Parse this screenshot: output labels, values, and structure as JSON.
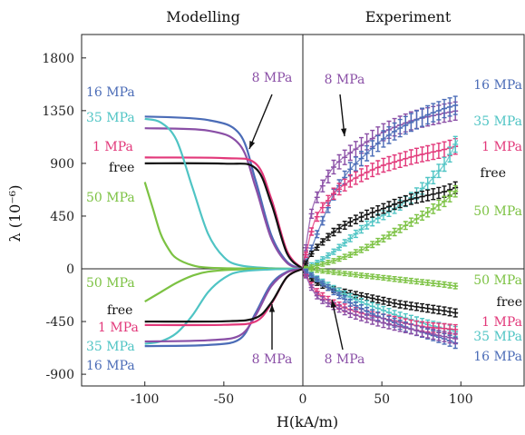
{
  "chart_data": {
    "type": "line",
    "panel_titles": {
      "left": "Modelling",
      "right": "Experiment"
    },
    "xlabel": "H(kA/m)",
    "ylabel": "λ (10⁻⁶)",
    "xlim": [
      -140,
      140
    ],
    "ylim": [
      -1000,
      2000
    ],
    "xticks": [
      -100,
      -50,
      0,
      50,
      100
    ],
    "yticks": [
      -900,
      -450,
      0,
      450,
      900,
      1350,
      1800
    ],
    "grid": false,
    "colors": {
      "16 MPa": "#4b6cb7",
      "35 MPa": "#4fc4c4",
      "1 MPa": "#e2387a",
      "free": "#111111",
      "50 MPa": "#7cc243",
      "8 MPa": "#8a4fa6"
    },
    "model_parallel": [
      {
        "name": "16 MPa",
        "x": [
          -100,
          -60,
          -40,
          -30,
          -20,
          -10,
          0
        ],
        "y": [
          1300,
          1270,
          1150,
          760,
          290,
          60,
          0
        ]
      },
      {
        "name": "8 MPa",
        "x": [
          -100,
          -60,
          -40,
          -30,
          -20,
          -10,
          0
        ],
        "y": [
          1200,
          1180,
          1060,
          700,
          260,
          50,
          0
        ]
      },
      {
        "name": "1 MPa",
        "x": [
          -100,
          -50,
          -30,
          -20,
          -10,
          0
        ],
        "y": [
          950,
          945,
          900,
          600,
          150,
          0
        ]
      },
      {
        "name": "free",
        "x": [
          -100,
          -50,
          -30,
          -20,
          -10,
          0
        ],
        "y": [
          900,
          898,
          860,
          560,
          130,
          0
        ]
      },
      {
        "name": "35 MPa",
        "x": [
          -100,
          -90,
          -80,
          -70,
          -60,
          -50,
          -40,
          -20,
          0
        ],
        "y": [
          1280,
          1250,
          1100,
          700,
          300,
          100,
          30,
          5,
          0
        ]
      },
      {
        "name": "50 MPa",
        "x": [
          -100,
          -95,
          -90,
          -85,
          -80,
          -70,
          -60,
          -40,
          0
        ],
        "y": [
          740,
          520,
          300,
          170,
          90,
          30,
          10,
          3,
          0
        ]
      }
    ],
    "model_perpendicular": [
      {
        "name": "50 MPa",
        "x": [
          -100,
          -90,
          -80,
          -70,
          -60,
          -40,
          0
        ],
        "y": [
          -280,
          -200,
          -120,
          -60,
          -25,
          -5,
          0
        ]
      },
      {
        "name": "35 MPa",
        "x": [
          -100,
          -90,
          -80,
          -70,
          -60,
          -50,
          -40,
          -20,
          0
        ],
        "y": [
          -640,
          -620,
          -550,
          -400,
          -200,
          -80,
          -25,
          -5,
          0
        ]
      },
      {
        "name": "16 MPa",
        "x": [
          -100,
          -60,
          -40,
          -30,
          -20,
          -10,
          0
        ],
        "y": [
          -660,
          -650,
          -600,
          -380,
          -130,
          -25,
          0
        ]
      },
      {
        "name": "8 MPa",
        "x": [
          -100,
          -60,
          -40,
          -30,
          -20,
          -10,
          0
        ],
        "y": [
          -620,
          -610,
          -570,
          -400,
          -150,
          -30,
          0
        ]
      },
      {
        "name": "1 MPa",
        "x": [
          -100,
          -50,
          -30,
          -20,
          -10,
          0
        ],
        "y": [
          -480,
          -478,
          -450,
          -300,
          -70,
          0
        ]
      },
      {
        "name": "free",
        "x": [
          -100,
          -50,
          -30,
          -20,
          -10,
          0
        ],
        "y": [
          -450,
          -448,
          -420,
          -290,
          -70,
          0
        ]
      }
    ],
    "experiment_parallel": [
      {
        "name": "8 MPa",
        "x": [
          0,
          5,
          10,
          20,
          30,
          40,
          50,
          60,
          70,
          80,
          90,
          98
        ],
        "y": [
          0,
          450,
          650,
          880,
          990,
          1080,
          1160,
          1220,
          1270,
          1300,
          1330,
          1350
        ]
      },
      {
        "name": "16 MPa",
        "x": [
          0,
          5,
          10,
          20,
          30,
          40,
          50,
          60,
          70,
          80,
          90,
          98
        ],
        "y": [
          0,
          160,
          330,
          650,
          850,
          980,
          1100,
          1190,
          1260,
          1320,
          1370,
          1400
        ]
      },
      {
        "name": "1 MPa",
        "x": [
          0,
          5,
          10,
          20,
          30,
          40,
          50,
          60,
          70,
          80,
          90,
          98
        ],
        "y": [
          0,
          300,
          480,
          650,
          750,
          820,
          880,
          920,
          960,
          990,
          1020,
          1050
        ]
      },
      {
        "name": "35 MPa",
        "x": [
          0,
          10,
          20,
          30,
          40,
          50,
          60,
          70,
          80,
          90,
          98
        ],
        "y": [
          0,
          60,
          150,
          260,
          370,
          450,
          530,
          620,
          740,
          900,
          1100
        ]
      },
      {
        "name": "free",
        "x": [
          0,
          5,
          10,
          20,
          30,
          40,
          50,
          60,
          70,
          80,
          90,
          98
        ],
        "y": [
          0,
          120,
          200,
          320,
          400,
          460,
          510,
          560,
          600,
          630,
          660,
          700
        ]
      },
      {
        "name": "50 MPa",
        "x": [
          0,
          10,
          20,
          30,
          40,
          50,
          60,
          70,
          80,
          90,
          98
        ],
        "y": [
          0,
          30,
          70,
          120,
          180,
          250,
          330,
          410,
          490,
          580,
          680
        ]
      }
    ],
    "experiment_perpendicular": [
      {
        "name": "50 MPa",
        "x": [
          0,
          10,
          20,
          30,
          40,
          50,
          60,
          70,
          80,
          90,
          98
        ],
        "y": [
          0,
          -15,
          -30,
          -45,
          -60,
          -75,
          -90,
          -105,
          -120,
          -135,
          -150
        ]
      },
      {
        "name": "free",
        "x": [
          0,
          5,
          10,
          20,
          30,
          40,
          50,
          60,
          70,
          80,
          90,
          98
        ],
        "y": [
          0,
          -80,
          -130,
          -180,
          -210,
          -240,
          -270,
          -300,
          -320,
          -340,
          -360,
          -380
        ]
      },
      {
        "name": "35 MPa",
        "x": [
          0,
          10,
          20,
          30,
          40,
          50,
          60,
          70,
          80,
          90,
          98
        ],
        "y": [
          0,
          -90,
          -170,
          -240,
          -300,
          -350,
          -400,
          -440,
          -480,
          -510,
          -540
        ]
      },
      {
        "name": "1 MPa",
        "x": [
          0,
          5,
          10,
          20,
          30,
          40,
          50,
          60,
          70,
          80,
          90,
          98
        ],
        "y": [
          0,
          -130,
          -210,
          -300,
          -350,
          -390,
          -420,
          -450,
          -480,
          -500,
          -510,
          -520
        ]
      },
      {
        "name": "16 MPa",
        "x": [
          0,
          10,
          20,
          30,
          40,
          50,
          60,
          70,
          80,
          90,
          98
        ],
        "y": [
          0,
          -100,
          -200,
          -290,
          -360,
          -420,
          -470,
          -520,
          -560,
          -600,
          -640
        ]
      },
      {
        "name": "8 MPa",
        "x": [
          0,
          5,
          10,
          20,
          30,
          40,
          50,
          60,
          70,
          80,
          90,
          98
        ],
        "y": [
          0,
          -150,
          -250,
          -320,
          -380,
          -420,
          -460,
          -490,
          -520,
          -550,
          -580,
          -600
        ]
      }
    ],
    "labels_left": [
      "16 MPa",
      "35 MPa",
      "1 MPa",
      "free",
      "50 MPa",
      "50 MPa",
      "free",
      "1 MPa",
      "35 MPa",
      "16 MPa"
    ],
    "labels_right": [
      "16 MPa",
      "35 MPa",
      "1 MPa",
      "free",
      "50 MPa",
      "50 MPa",
      "free",
      "1 MPa",
      "35 MPa",
      "16 MPa"
    ],
    "annotations": [
      "8 MPa",
      "8 MPa",
      "8 MPa",
      "8 MPa"
    ]
  }
}
